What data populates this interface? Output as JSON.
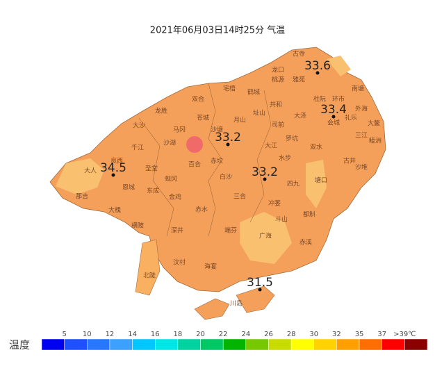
{
  "title": "2021年06月03日14时25分 气温",
  "stations": [
    33.6,
    33.4,
    33.2,
    34.5,
    33.2,
    31.5
  ],
  "places": [
    "古寺",
    "龙口",
    "桃源",
    "雅苑",
    "宅梧",
    "鹤城",
    "双合",
    "南塘",
    "杜阮",
    "环市",
    "龙胜",
    "苍城",
    "月山",
    "址山",
    "共和",
    "大泽",
    "司前",
    "外海",
    "礼乐",
    "大鳌",
    "大沙",
    "马冈",
    "沙塘",
    "罗坑",
    "三江",
    "睦洲",
    "会城",
    "双水",
    "沙湖",
    "大江",
    "水步",
    "古井",
    "沙堆",
    "四九",
    "白沙",
    "赤坎",
    "百合",
    "良西",
    "圣堂",
    "蚬冈",
    "大槐",
    "恩城",
    "东成",
    "金鸡",
    "赤水",
    "三合",
    "冲蒌",
    "斗山",
    "都斛",
    "端芬",
    "广海",
    "赤溪",
    "横陂",
    "深井",
    "汶村",
    "海宴",
    "北陡",
    "川岛",
    "那吉",
    "大人",
    "塘口",
    "千江"
  ],
  "legend": {
    "label": "温度",
    "labels": [
      "5",
      "10",
      "12",
      "14",
      "16",
      "18",
      "20",
      "22",
      "24",
      "26",
      "28",
      "30",
      "32",
      "35",
      "37",
      ">39℃"
    ],
    "colors": [
      "#0000f0",
      "#1e50ff",
      "#2878ff",
      "#3ca0ff",
      "#00c8ff",
      "#00e6e6",
      "#00d2a0",
      "#00c864",
      "#00b400",
      "#78c800",
      "#c8dc00",
      "#ffff00",
      "#ffd200",
      "#ffa000",
      "#ff6e00",
      "#ff0000",
      "#8b0000"
    ]
  }
}
